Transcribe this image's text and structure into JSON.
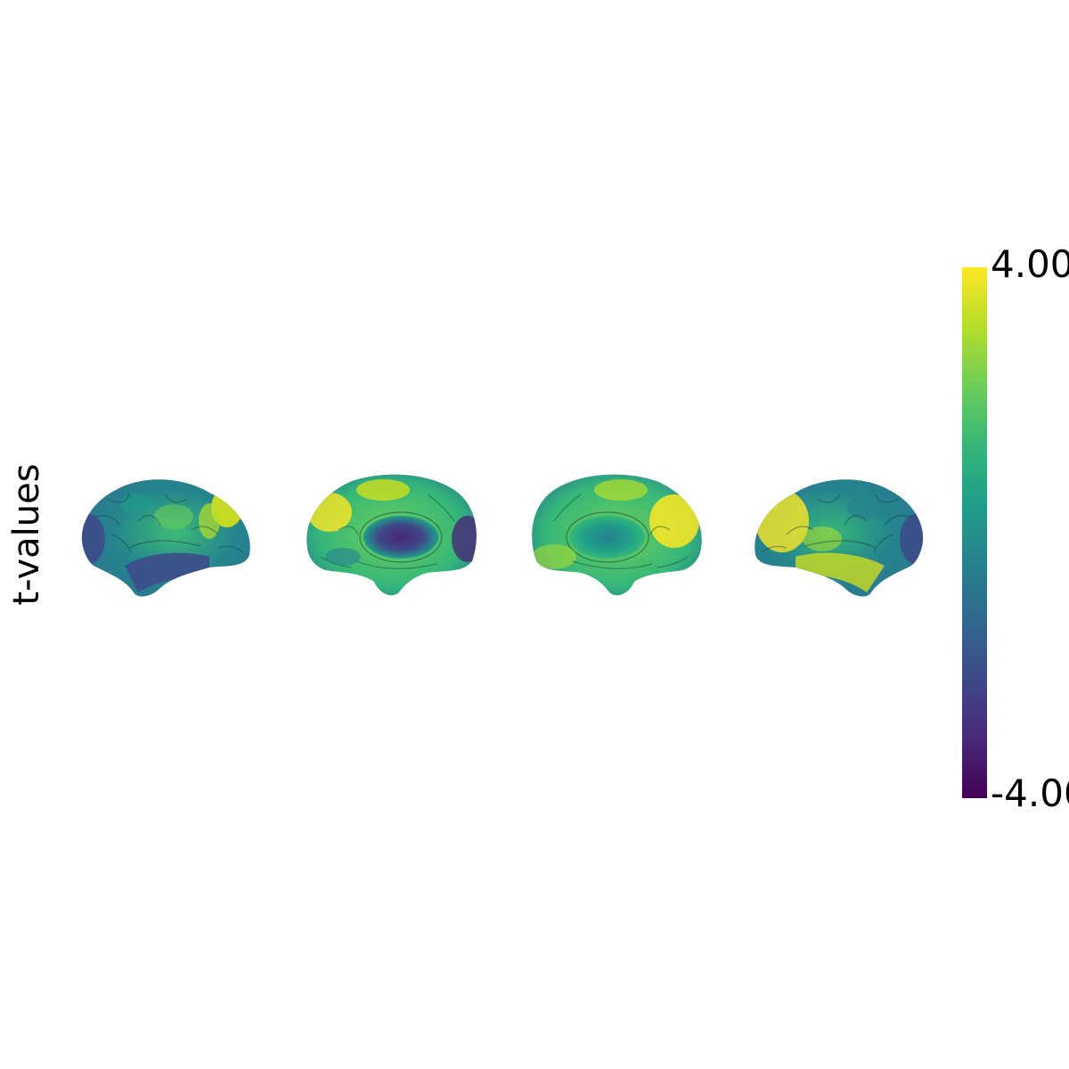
{
  "ylabel": "t-values",
  "colormap": {
    "name": "viridis",
    "stops": [
      "#440154",
      "#482878",
      "#3e4989",
      "#31688e",
      "#26828e",
      "#1f9e89",
      "#35b779",
      "#6ece58",
      "#b5de2b",
      "#fde725"
    ]
  },
  "colorbar": {
    "max_label": "4.00",
    "min_label": "-4.00",
    "vmax": 4.0,
    "vmin": -4.0
  },
  "views": [
    {
      "id": "lh-lateral",
      "hemisphere": "left",
      "view": "lateral"
    },
    {
      "id": "lh-medial",
      "hemisphere": "left",
      "view": "medial"
    },
    {
      "id": "rh-medial",
      "hemisphere": "right",
      "view": "medial"
    },
    {
      "id": "rh-lateral",
      "hemisphere": "right",
      "view": "lateral"
    }
  ]
}
